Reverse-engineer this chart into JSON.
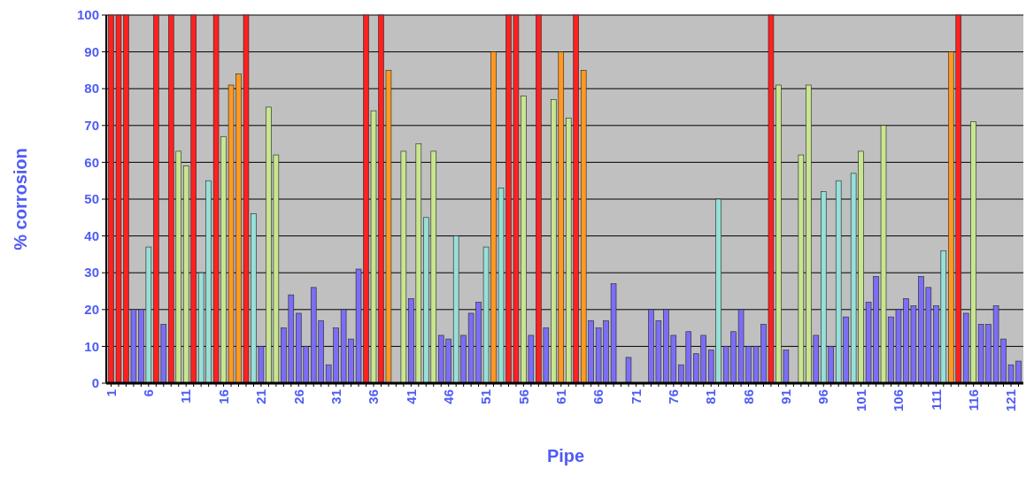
{
  "chart_data": {
    "type": "bar",
    "xlabel": "Pipe",
    "ylabel": "% corrosion",
    "categories": [
      "1",
      null,
      null,
      null,
      null,
      "6",
      null,
      null,
      null,
      null,
      "11",
      null,
      null,
      null,
      null,
      "16",
      null,
      null,
      null,
      null,
      "21",
      null,
      null,
      null,
      null,
      "26",
      null,
      null,
      null,
      null,
      "31",
      null,
      null,
      null,
      null,
      "36",
      null,
      null,
      null,
      null,
      "41",
      null,
      null,
      null,
      null,
      "46",
      null,
      null,
      null,
      null,
      "51",
      null,
      null,
      null,
      null,
      "56",
      null,
      null,
      null,
      null,
      "61",
      null,
      null,
      null,
      null,
      "66",
      null,
      null,
      null,
      null,
      "71",
      null,
      null,
      null,
      null,
      "76",
      null,
      null,
      null,
      null,
      "81",
      null,
      null,
      null,
      null,
      "86",
      null,
      null,
      null,
      null,
      "91",
      null,
      null,
      null,
      null,
      "96",
      null,
      null,
      null,
      null,
      "101",
      null,
      null,
      null,
      null,
      "106",
      null,
      null,
      null,
      null,
      "111",
      null,
      null,
      null,
      null,
      "116",
      null,
      null,
      null,
      null,
      "121",
      null
    ],
    "values": [
      100,
      100,
      100,
      20,
      20,
      37,
      100,
      16,
      100,
      63,
      59,
      100,
      30,
      55,
      100,
      67,
      81,
      84,
      100,
      46,
      10,
      75,
      62,
      15,
      24,
      19,
      10,
      26,
      17,
      5,
      15,
      20,
      12,
      31,
      100,
      74,
      100,
      85,
      0,
      63,
      23,
      65,
      45,
      63,
      13,
      12,
      40,
      13,
      19,
      22,
      37,
      90,
      53,
      100,
      100,
      78,
      13,
      100,
      15,
      77,
      90,
      72,
      100,
      85,
      17,
      15,
      17,
      27,
      0,
      7,
      0,
      0,
      20,
      17,
      20,
      13,
      5,
      14,
      8,
      13,
      9,
      50,
      10,
      14,
      20,
      10,
      10,
      16,
      100,
      81,
      9,
      0,
      62,
      81,
      13,
      52,
      10,
      55,
      18,
      57,
      63,
      22,
      29,
      70,
      18,
      20,
      23,
      21,
      29,
      26,
      21,
      36,
      90,
      100,
      19,
      71,
      16,
      16,
      21,
      12,
      5,
      6
    ],
    "colors": [
      "#ff2020",
      "#ff2020",
      "#ff2020",
      "#7b6ef5",
      "#7b6ef5",
      "#96e0d8",
      "#ff2020",
      "#7b6ef5",
      "#ff2020",
      "#c8e68f",
      "#c8e68f",
      "#ff2020",
      "#96e0d8",
      "#96e0d8",
      "#ff2020",
      "#c8e68f",
      "#ff9922",
      "#ff9922",
      "#ff2020",
      "#96e0d8",
      "#7b6ef5",
      "#c8e68f",
      "#c8e68f",
      "#7b6ef5",
      "#7b6ef5",
      "#7b6ef5",
      "#7b6ef5",
      "#7b6ef5",
      "#7b6ef5",
      "#7b6ef5",
      "#7b6ef5",
      "#7b6ef5",
      "#7b6ef5",
      "#7b6ef5",
      "#ff2020",
      "#c8e68f",
      "#ff2020",
      "#ff9922",
      "#7b6ef5",
      "#c8e68f",
      "#7b6ef5",
      "#c8e68f",
      "#96e0d8",
      "#c8e68f",
      "#7b6ef5",
      "#7b6ef5",
      "#96e0d8",
      "#7b6ef5",
      "#7b6ef5",
      "#7b6ef5",
      "#96e0d8",
      "#ff9922",
      "#96e0d8",
      "#ff2020",
      "#ff2020",
      "#c8e68f",
      "#7b6ef5",
      "#ff2020",
      "#7b6ef5",
      "#c8e68f",
      "#ff9922",
      "#c8e68f",
      "#ff2020",
      "#ff9922",
      "#7b6ef5",
      "#7b6ef5",
      "#7b6ef5",
      "#7b6ef5",
      "#7b6ef5",
      "#7b6ef5",
      "#7b6ef5",
      "#7b6ef5",
      "#7b6ef5",
      "#7b6ef5",
      "#7b6ef5",
      "#7b6ef5",
      "#7b6ef5",
      "#7b6ef5",
      "#7b6ef5",
      "#7b6ef5",
      "#7b6ef5",
      "#96e0d8",
      "#7b6ef5",
      "#7b6ef5",
      "#7b6ef5",
      "#7b6ef5",
      "#7b6ef5",
      "#7b6ef5",
      "#ff2020",
      "#c8e68f",
      "#7b6ef5",
      "#7b6ef5",
      "#c8e68f",
      "#c8e68f",
      "#7b6ef5",
      "#96e0d8",
      "#7b6ef5",
      "#96e0d8",
      "#7b6ef5",
      "#96e0d8",
      "#c8e68f",
      "#7b6ef5",
      "#7b6ef5",
      "#c8e68f",
      "#7b6ef5",
      "#7b6ef5",
      "#7b6ef5",
      "#7b6ef5",
      "#7b6ef5",
      "#7b6ef5",
      "#7b6ef5",
      "#96e0d8",
      "#ff9922",
      "#ff2020",
      "#7b6ef5",
      "#c8e68f",
      "#7b6ef5",
      "#7b6ef5",
      "#7b6ef5",
      "#7b6ef5",
      "#7b6ef5",
      "#7b6ef5"
    ],
    "ylim": [
      0,
      100
    ],
    "yticks": [
      0,
      10,
      20,
      30,
      40,
      50,
      60,
      70,
      80,
      90,
      100
    ],
    "grid": "y"
  }
}
